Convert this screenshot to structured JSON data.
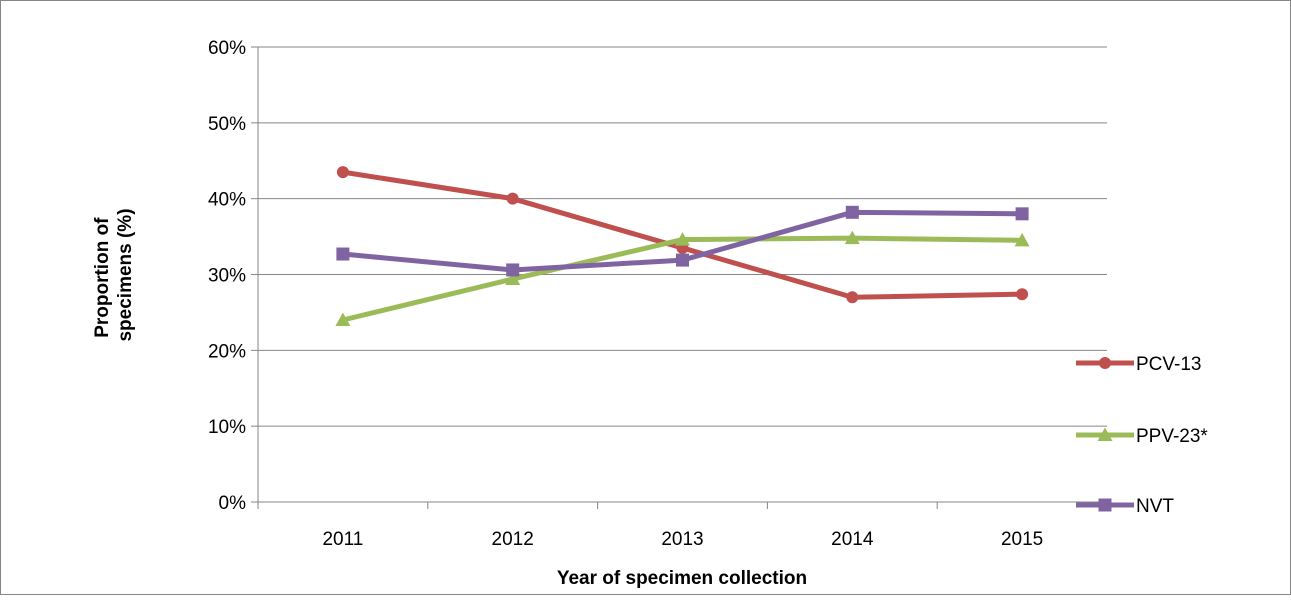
{
  "chart_data": {
    "type": "line",
    "xlabel": "Year of specimen collection",
    "ylabel": "Proportion of specimens (%)",
    "ylabel_lines": [
      "Proportion of",
      "specimens (%)"
    ],
    "categories": [
      "2011",
      "2012",
      "2013",
      "2014",
      "2015"
    ],
    "y_ticks": [
      "0%",
      "10%",
      "20%",
      "30%",
      "40%",
      "50%",
      "60%"
    ],
    "ylim": [
      0,
      60
    ],
    "y_unit": "%",
    "grid": "horizontal",
    "legend_position": "right",
    "series": [
      {
        "name": "PCV-13",
        "color": "#c0504d",
        "marker": "circle",
        "values": [
          43.5,
          40.0,
          33.5,
          27.0,
          27.4
        ]
      },
      {
        "name": "PPV-23*",
        "color": "#9bbb59",
        "marker": "triangle",
        "values": [
          24.0,
          29.4,
          34.6,
          34.8,
          34.5
        ]
      },
      {
        "name": "NVT",
        "color": "#8064a2",
        "marker": "square",
        "values": [
          32.7,
          30.6,
          31.9,
          38.2,
          38.0
        ]
      }
    ]
  }
}
